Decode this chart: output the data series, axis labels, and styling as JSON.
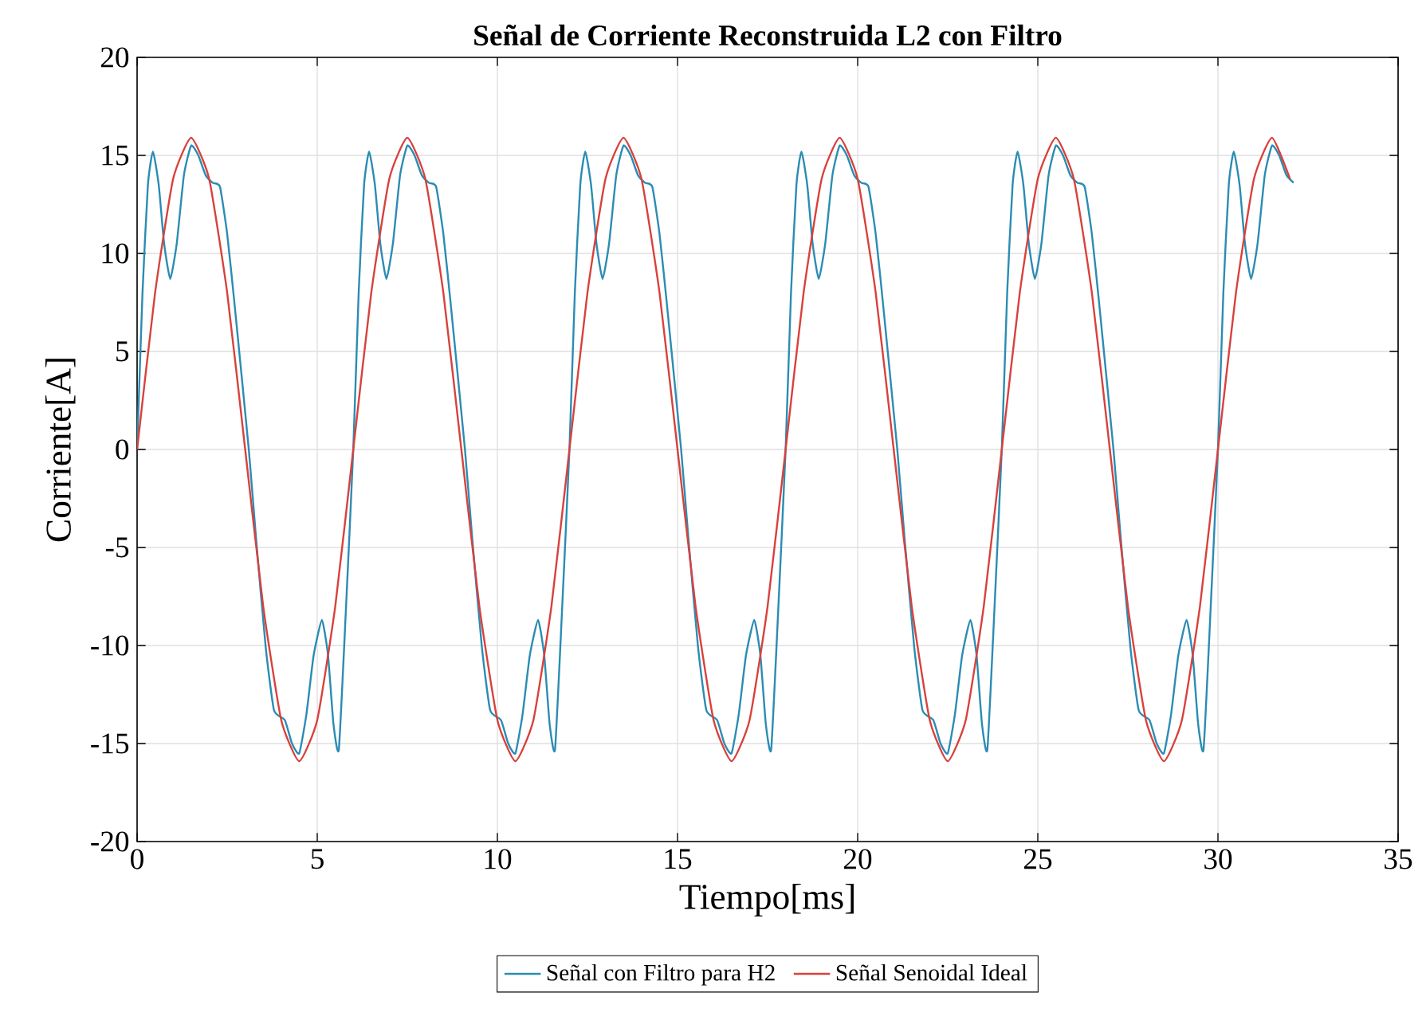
{
  "chart_data": {
    "type": "line",
    "title": "Señal de Corriente Reconstruida L2 con Filtro",
    "xlabel": "Tiempo[ms]",
    "ylabel": "Corriente[A]",
    "xlim": [
      0,
      35
    ],
    "xticks": [
      0,
      5,
      10,
      15,
      20,
      25,
      30,
      35
    ],
    "ylim": [
      -20,
      20
    ],
    "yticks": [
      -20,
      -15,
      -10,
      -5,
      0,
      5,
      10,
      15,
      20
    ],
    "grid": true,
    "legend": "bottom",
    "marker": "none",
    "line_style": "solid",
    "series": [
      {
        "name": "Señal con Filtro para H2",
        "color": "#2b8cb3",
        "x": [
          0,
          0.15,
          0.3,
          0.44,
          0.6,
          0.75,
          0.92,
          1.1,
          1.3,
          1.5,
          1.7,
          1.9,
          2.1,
          2.3,
          2.5,
          2.7,
          3.1,
          3.3,
          3.57,
          3.8,
          4.1,
          4.3,
          4.5,
          4.7,
          4.9,
          5.13,
          5.3,
          5.45,
          5.6,
          5.8,
          6,
          6.15,
          6.3,
          6.44,
          6.6,
          6.75,
          6.92,
          7.1,
          7.3,
          7.5,
          7.7,
          7.9,
          8.1,
          8.3,
          8.5,
          8.7,
          9.1,
          9.3,
          9.57,
          9.8,
          10.1,
          10.3,
          10.5,
          10.7,
          10.9,
          11.13,
          11.3,
          11.45,
          11.6,
          11.8,
          12,
          12.15,
          12.3,
          12.44,
          12.6,
          12.75,
          12.92,
          13.1,
          13.3,
          13.5,
          13.7,
          13.9,
          14.1,
          14.3,
          14.5,
          14.7,
          15.1,
          15.3,
          15.57,
          15.8,
          16.1,
          16.3,
          16.5,
          16.7,
          16.9,
          17.13,
          17.3,
          17.45,
          17.6,
          17.8,
          18,
          18.15,
          18.3,
          18.44,
          18.6,
          18.75,
          18.92,
          19.1,
          19.3,
          19.5,
          19.7,
          19.9,
          20.1,
          20.3,
          20.5,
          20.7,
          21.1,
          21.3,
          21.57,
          21.8,
          22.1,
          22.3,
          22.5,
          22.7,
          22.9,
          23.13,
          23.3,
          23.45,
          23.6,
          23.8,
          24,
          24.15,
          24.3,
          24.44,
          24.6,
          24.75,
          24.92,
          25.1,
          25.3,
          25.5,
          25.7,
          25.9,
          26.1,
          26.3,
          26.5,
          26.7,
          27.1,
          27.3,
          27.57,
          27.8,
          28.1,
          28.3,
          28.5,
          28.7,
          28.9,
          29.13,
          29.3,
          29.45,
          29.6,
          29.8,
          30,
          30.15,
          30.3,
          30.44,
          30.6,
          30.75,
          30.92,
          31.1,
          31.3,
          31.5,
          31.7,
          31.9,
          32.1
        ],
        "values": [
          0,
          8,
          13.5,
          15.2,
          13.5,
          10.5,
          8.7,
          10.5,
          14,
          15.5,
          15,
          14,
          13.6,
          13.4,
          11,
          7.5,
          0,
          -4.5,
          -10.1,
          -13.3,
          -13.8,
          -15,
          -15.5,
          -13.5,
          -10.5,
          -8.7,
          -10.5,
          -14,
          -15.3,
          -8,
          0,
          8,
          13.5,
          15.2,
          13.5,
          10.5,
          8.7,
          10.5,
          14,
          15.5,
          15,
          14,
          13.6,
          13.4,
          11,
          7.5,
          0,
          -4.5,
          -10.1,
          -13.3,
          -13.8,
          -15,
          -15.5,
          -13.5,
          -10.5,
          -8.7,
          -10.5,
          -14,
          -15.3,
          -8,
          0,
          8,
          13.5,
          15.2,
          13.5,
          10.5,
          8.7,
          10.5,
          14,
          15.5,
          15,
          14,
          13.6,
          13.4,
          11,
          7.5,
          0,
          -4.5,
          -10.1,
          -13.3,
          -13.8,
          -15,
          -15.5,
          -13.5,
          -10.5,
          -8.7,
          -10.5,
          -14,
          -15.3,
          -8,
          0,
          8,
          13.5,
          15.2,
          13.5,
          10.5,
          8.7,
          10.5,
          14,
          15.5,
          15,
          14,
          13.6,
          13.4,
          11,
          7.5,
          0,
          -4.5,
          -10.1,
          -13.3,
          -13.8,
          -15,
          -15.5,
          -13.5,
          -10.5,
          -8.7,
          -10.5,
          -14,
          -15.3,
          -8,
          0,
          8,
          13.5,
          15.2,
          13.5,
          10.5,
          8.7,
          10.5,
          14,
          15.5,
          15,
          14,
          13.6,
          13.4,
          11,
          7.5,
          0,
          -4.5,
          -10.1,
          -13.3,
          -13.8,
          -15,
          -15.5,
          -13.5,
          -10.5,
          -8.7,
          -10.5,
          -14,
          -15.3,
          -8,
          0,
          8,
          13.5,
          15.2,
          13.5,
          10.5,
          8.7,
          10.5,
          14,
          15.5,
          15,
          14,
          13.6
        ]
      },
      {
        "name": "Señal Senoidal Ideal",
        "color": "#d8413c",
        "x": [
          0,
          0.5,
          1,
          1.5,
          2,
          2.5,
          3,
          3.5,
          4,
          4.5,
          5,
          5.5,
          6,
          6.5,
          7,
          7.5,
          8,
          8.5,
          9,
          9.5,
          10,
          10.5,
          11,
          11.5,
          12,
          12.5,
          13,
          13.5,
          14,
          14.5,
          15,
          15.5,
          16,
          16.5,
          17,
          17.5,
          18,
          18.5,
          19,
          19.5,
          20,
          20.5,
          21,
          21.5,
          22,
          22.5,
          23,
          23.5,
          24,
          24.5,
          25,
          25.5,
          26,
          26.5,
          27,
          27.5,
          28,
          28.5,
          29,
          29.5,
          30,
          30.5,
          31,
          31.5,
          32
        ],
        "values": [
          0,
          8,
          13.8,
          15.9,
          13.8,
          8,
          0,
          -8,
          -13.8,
          -15.9,
          -13.8,
          -8,
          0,
          8,
          13.8,
          15.9,
          13.8,
          8,
          0,
          -8,
          -13.8,
          -15.9,
          -13.8,
          -8,
          0,
          8,
          13.8,
          15.9,
          13.8,
          8,
          0,
          -8,
          -13.8,
          -15.9,
          -13.8,
          -8,
          0,
          8,
          13.8,
          15.9,
          13.8,
          8,
          0,
          -8,
          -13.8,
          -15.9,
          -13.8,
          -8,
          0,
          8,
          13.8,
          15.9,
          13.8,
          8,
          0,
          -8,
          -13.8,
          -15.9,
          -13.8,
          -8,
          0,
          8,
          13.8,
          15.9,
          13.8
        ]
      }
    ]
  }
}
